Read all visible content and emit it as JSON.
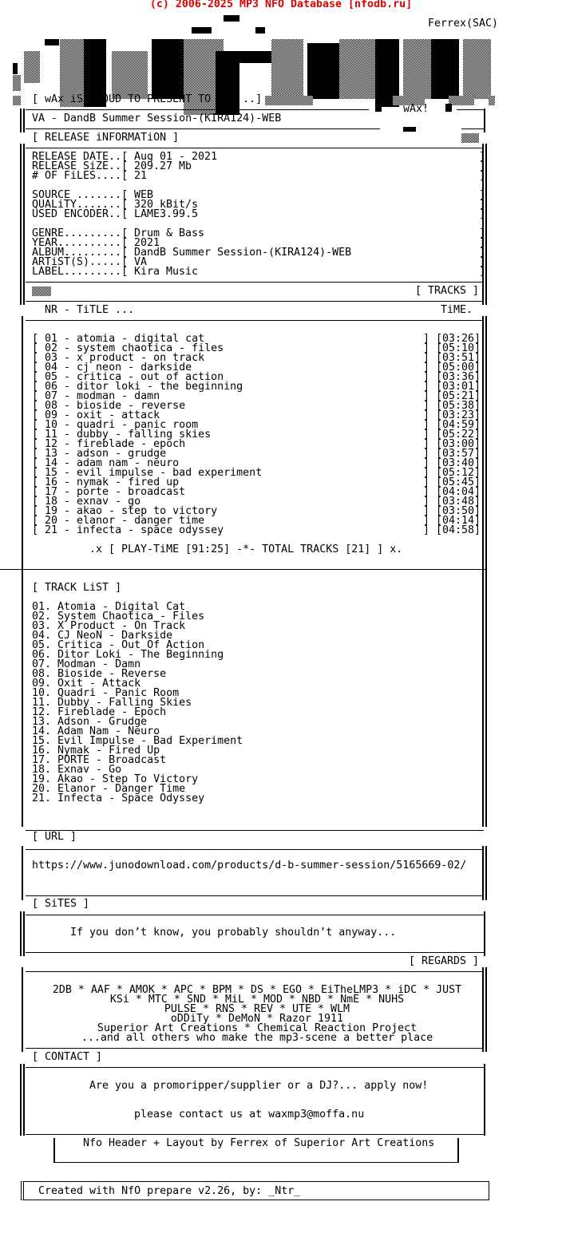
{
  "site_banner": "(c) 2006-2025 MP3 NFO Database [nfodb.ru]",
  "logo": {
    "artist_tag": "Ferrex(SAC)",
    "text": "wAx",
    "badge": "wAx!"
  },
  "intro": "[ wAx iS PROUD TO PRESENT TO YOU ..]",
  "release_title": "VA - DandB Summer Session-(KIRA124)-WEB",
  "release_info_heading": "[ RELEASE iNFORMATiON ]",
  "release_info": [
    {
      "label": "RELEASE DATE..[ ",
      "value": "Aug 01 - 2021"
    },
    {
      "label": "RELEASE SiZE..[ ",
      "value": "209.27 Mb"
    },
    {
      "label": "# OF FiLES....[ ",
      "value": "21"
    },
    {
      "label": "SOURCE .......[ ",
      "value": "WEB"
    },
    {
      "label": "QUALiTY.......[ ",
      "value": "320 kBit/s"
    },
    {
      "label": "USED ENCODER..[ ",
      "value": "LAME3.99.5"
    },
    {
      "label": "GENRE.........[ ",
      "value": "Drum & Bass"
    },
    {
      "label": "YEAR..........[ ",
      "value": "2021"
    },
    {
      "label": "ALBUM.........[ ",
      "value": "DandB Summer Session-(KIRA124)-WEB"
    },
    {
      "label": "ARTiST(S).....[ ",
      "value": "VA"
    },
    {
      "label": "LABEL.........[ ",
      "value": "Kira Music"
    }
  ],
  "tracks_heading": "[ TRACKS ]",
  "tracks_columns": {
    "title": "NR - TiTLE ...",
    "time": "TiME."
  },
  "tracks": [
    {
      "line": "[ 01 - atomia - digital cat",
      "time": "] [03:26]"
    },
    {
      "line": "[ 02 - system chaotica - files",
      "time": "] [05:10]"
    },
    {
      "line": "[ 03 - x product - on track",
      "time": "] [03:51]"
    },
    {
      "line": "[ 04 - cj neon - darkside",
      "time": "] [05:00]"
    },
    {
      "line": "[ 05 - critica - out of action",
      "time": "] [03:36]"
    },
    {
      "line": "[ 06 - ditor loki - the beginning",
      "time": "] [03:01]"
    },
    {
      "line": "[ 07 - modman - damn",
      "time": "] [05:21]"
    },
    {
      "line": "[ 08 - bioside - reverse",
      "time": "] [05:38]"
    },
    {
      "line": "[ 09 - oxit - attack",
      "time": "] [03:23]"
    },
    {
      "line": "[ 10 - quadri - panic room",
      "time": "] [04:59]"
    },
    {
      "line": "[ 11 - dubby - falling skies",
      "time": "] [05:22]"
    },
    {
      "line": "[ 12 - fireblade - epoch",
      "time": "] [03:00]"
    },
    {
      "line": "[ 13 - adson - grudge",
      "time": "] [03:57]"
    },
    {
      "line": "[ 14 - adam nam - neuro",
      "time": "] [03:40]"
    },
    {
      "line": "[ 15 - evil impulse - bad experiment",
      "time": "] [05:12]"
    },
    {
      "line": "[ 16 - nymak - fired up",
      "time": "] [05:45]"
    },
    {
      "line": "[ 17 - porte - broadcast",
      "time": "] [04:04]"
    },
    {
      "line": "[ 18 - exnav - go",
      "time": "] [03:48]"
    },
    {
      "line": "[ 19 - akao - step to victory",
      "time": "] [03:50]"
    },
    {
      "line": "[ 20 - elanor - danger time",
      "time": "] [04:14]"
    },
    {
      "line": "[ 21 - infecta - space odyssey",
      "time": "] [04:58]"
    }
  ],
  "playtime_line": ".x [ PLAY-TiME [91:25] -*- TOTAL TRACKS [21] ] x.",
  "track_list_heading": "[ TRACK LiST ]",
  "track_list": [
    "01. Atomia - Digital Cat",
    "02. System Chaotica - Files",
    "03. X Product - On Track",
    "04. CJ NeoN - Darkside",
    "05. Critica - Out Of Action",
    "06. Ditor Loki - The Beginning",
    "07. Modman - Damn",
    "08. Bioside - Reverse",
    "09. Oxit - Attack",
    "10. Quadri - Panic Room",
    "11. Dubby - Falling Skies",
    "12. Fireblade - Epoch",
    "13. Adson - Grudge",
    "14. Adam Nam - Neuro",
    "15. Evil Impulse - Bad Experiment",
    "16. Nymak - Fired Up",
    "17. PORTE - Broadcast",
    "18. Exnav - Go",
    "19. Akao - Step To Victory",
    "20. Elanor - Danger Time",
    "21. Infecta - Space Odyssey"
  ],
  "url_heading": "[ URL ]",
  "url": "https://www.junodownload.com/products/d-b-summer-session/5165669-02/",
  "sites_heading": "[ SiTES ]",
  "sites_text": "If you don’t know, you probably shouldn’t anyway...",
  "regards_heading": "[ REGARDS ]",
  "regards": [
    "2DB * AAF * AMOK * APC * BPM * DS * EGO * EiTheLMP3 * iDC * JUST",
    "KSi * MTC * SND * MiL * MOD * NBD * NmE * NUHS",
    "PULSE * RNS * REV * UTE * WLM",
    "oDDiTy * DeMoN * Razor 1911",
    "Superior Art Creations * Chemical Reaction Project",
    "...and all others who make the mp3-scene a better place"
  ],
  "contact_heading": "[ CONTACT ]",
  "contact_lines": [
    "Are you a promoripper/supplier or a DJ?... apply now!",
    "please contact us at waxmp3@moffa.nu"
  ],
  "credits": "Nfo Header + Layout by Ferrex of Superior Art Creations",
  "created_with": "Created with NfO prepare v2.26, by: _Ntr_"
}
